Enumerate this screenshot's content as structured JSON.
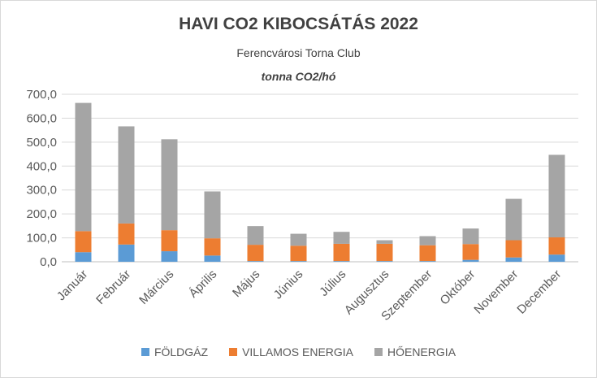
{
  "chart_data": {
    "type": "bar",
    "stacked": true,
    "title": "HAVI CO2 KIBOCSÁTÁS 2022",
    "subtitle": "Ferencvárosi Torna Club",
    "unit_label": "tonna CO2/hó",
    "categories": [
      "Január",
      "Február",
      "Március",
      "Április",
      "Május",
      "Június",
      "Július",
      "Augusztus",
      "Szeptember",
      "Október",
      "November",
      "December"
    ],
    "series": [
      {
        "name": "FÖLDGÁZ",
        "color": "#5b9bd5",
        "values": [
          40,
          72,
          44,
          26,
          3,
          3,
          3,
          3,
          3,
          8,
          18,
          30
        ]
      },
      {
        "name": "VILLAMOS ENERGIA",
        "color": "#ed7d31",
        "values": [
          88,
          88,
          88,
          72,
          68,
          64,
          72,
          72,
          66,
          66,
          72,
          72
        ]
      },
      {
        "name": "HŐENERGIA",
        "color": "#a5a5a5",
        "values": [
          536,
          406,
          380,
          196,
          78,
          50,
          50,
          15,
          38,
          65,
          173,
          345
        ]
      }
    ],
    "ylim": [
      0,
      700
    ],
    "yticks": [
      "0,0",
      "100,0",
      "200,0",
      "300,0",
      "400,0",
      "500,0",
      "600,0",
      "700,0"
    ],
    "grid": true,
    "legend": "bottom"
  }
}
